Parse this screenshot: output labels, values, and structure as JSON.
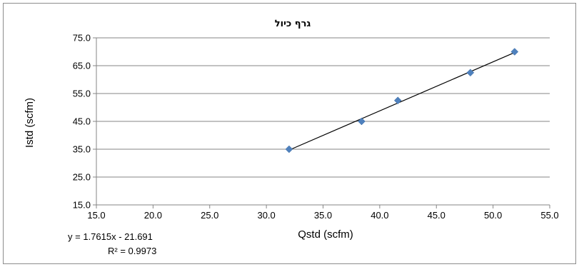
{
  "chart_data": {
    "type": "scatter",
    "title": "גרף כיול",
    "xlabel": "Qstd (scfm)",
    "ylabel": "Istd (scfm)",
    "xlim": [
      15.0,
      55.0
    ],
    "ylim": [
      15.0,
      75.0
    ],
    "x_ticks": [
      "15.0",
      "20.0",
      "25.0",
      "30.0",
      "35.0",
      "40.0",
      "45.0",
      "50.0",
      "55.0"
    ],
    "y_ticks": [
      "15.0",
      "25.0",
      "35.0",
      "45.0",
      "55.0",
      "65.0",
      "75.0"
    ],
    "grid": "horizontal",
    "marker_color": "#4f81bd",
    "series": [
      {
        "x": [
          32.0,
          38.4,
          41.6,
          48.0,
          51.9
        ],
        "y": [
          35.0,
          45.0,
          52.5,
          62.5,
          70.0
        ]
      }
    ],
    "trendline": {
      "slope": 1.7615,
      "intercept": -21.691,
      "x_range": [
        32.0,
        51.9
      ],
      "color": "#000000"
    },
    "equation": "y = 1.7615x - 21.691",
    "r_squared": "R² = 0.9973"
  }
}
